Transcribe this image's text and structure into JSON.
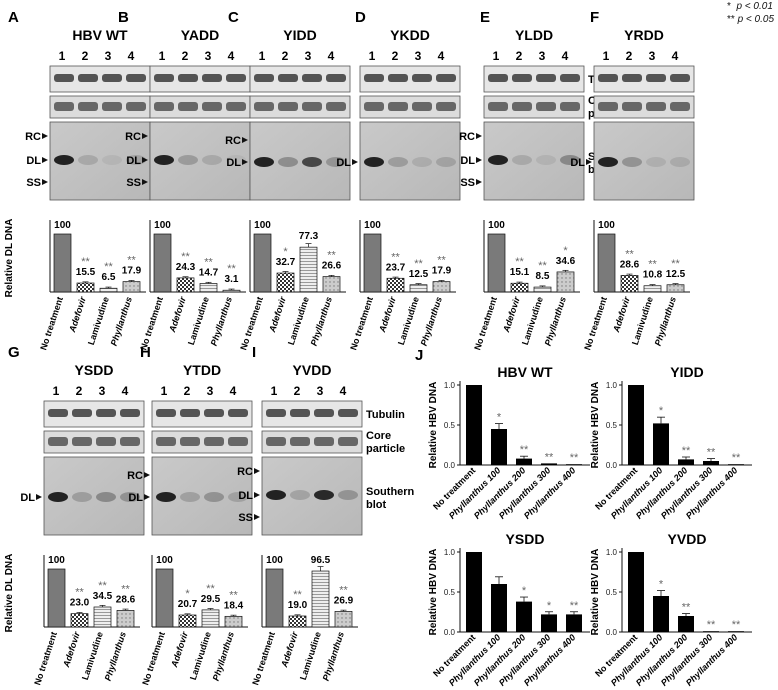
{
  "legend": [
    {
      "stars": "*",
      "text": "p < 0.01"
    },
    {
      "stars": "**",
      "text": "p < 0.05"
    }
  ],
  "blot_labels": {
    "tubulin": "Tubulin",
    "core_1": "Core",
    "core_2": "particle",
    "southern_1": "Southern",
    "southern_2": "blot"
  },
  "ylabel_dl": "Relative DL DNA",
  "ylabel_hbv": "Relative HBV DNA",
  "lanes": [
    "1",
    "2",
    "3",
    "4"
  ],
  "categories": [
    "No treatment",
    "Adefovir",
    "Lamivudine",
    "Phyllanthus"
  ],
  "chart_data": [
    {
      "type": "bar",
      "panel": "A",
      "title": "HBV WT",
      "categories": [
        "No treatment",
        "Adefovir",
        "Lamivudine",
        "Phyllanthus"
      ],
      "values": [
        100,
        15.5,
        6.5,
        17.9
      ],
      "value_labels": [
        "100",
        "15.5",
        "6.5",
        "17.9"
      ],
      "sig": [
        "",
        "**",
        "**",
        "**"
      ],
      "ylabel": "Relative DL DNA",
      "band_markers": [
        "RC",
        "DL",
        "SS"
      ],
      "side": {
        "tubulin": true,
        "southern": false
      }
    },
    {
      "type": "bar",
      "panel": "B",
      "title": "YADD",
      "categories": [
        "No treatment",
        "Adefovir",
        "Lamivudine",
        "Phyllanthus"
      ],
      "values": [
        100,
        24.3,
        14.7,
        3.1
      ],
      "value_labels": [
        "100",
        "24.3",
        "14.7",
        "3.1"
      ],
      "sig": [
        "",
        "**",
        "**",
        "**"
      ],
      "band_markers": [
        "RC",
        "DL",
        "SS"
      ]
    },
    {
      "type": "bar",
      "panel": "C",
      "title": "YIDD",
      "categories": [
        "No treatment",
        "Adefovir",
        "Lamivudine",
        "Phyllanthus"
      ],
      "values": [
        100,
        32.7,
        77.3,
        26.6
      ],
      "value_labels": [
        "100",
        "32.7",
        "77.3",
        "26.6"
      ],
      "sig": [
        "",
        "*",
        "",
        "**"
      ],
      "band_markers": [
        "RC",
        "DL"
      ]
    },
    {
      "type": "bar",
      "panel": "D",
      "title": "YKDD",
      "categories": [
        "No treatment",
        "Adefovir",
        "Lamivudine",
        "Phyllanthus"
      ],
      "values": [
        100,
        23.7,
        12.5,
        17.9
      ],
      "value_labels": [
        "100",
        "23.7",
        "12.5",
        "17.9"
      ],
      "sig": [
        "",
        "**",
        "**",
        "**"
      ],
      "band_markers": [
        "DL"
      ]
    },
    {
      "type": "bar",
      "panel": "E",
      "title": "YLDD",
      "categories": [
        "No treatment",
        "Adefovir",
        "Lamivudine",
        "Phyllanthus"
      ],
      "values": [
        100,
        15.1,
        8.5,
        34.6
      ],
      "value_labels": [
        "100",
        "15.1",
        "8.5",
        "34.6"
      ],
      "sig": [
        "",
        "**",
        "**",
        "*"
      ],
      "band_markers": [
        "RC",
        "DL",
        "SS"
      ]
    },
    {
      "type": "bar",
      "panel": "F",
      "title": "YRDD",
      "categories": [
        "No treatment",
        "Adefovir",
        "Lamivudine",
        "Phyllanthus"
      ],
      "values": [
        100,
        28.6,
        10.8,
        12.5
      ],
      "value_labels": [
        "100",
        "28.6",
        "10.8",
        "12.5"
      ],
      "sig": [
        "",
        "**",
        "**",
        "**"
      ],
      "band_markers": [
        "DL"
      ]
    },
    {
      "type": "bar",
      "panel": "G",
      "title": "YSDD",
      "categories": [
        "No treatment",
        "Adefovir",
        "Lamivudine",
        "Phyllanthus"
      ],
      "values": [
        100,
        23.0,
        34.5,
        28.6
      ],
      "value_labels": [
        "100",
        "23.0",
        "34.5",
        "28.6"
      ],
      "sig": [
        "",
        "**",
        "**",
        "**"
      ],
      "ylabel": "Relative DL DNA",
      "band_markers": [
        "DL"
      ]
    },
    {
      "type": "bar",
      "panel": "H",
      "title": "YTDD",
      "categories": [
        "No treatment",
        "Adefovir",
        "Lamivudine",
        "Phyllanthus"
      ],
      "values": [
        100,
        20.7,
        29.5,
        18.4
      ],
      "value_labels": [
        "100",
        "20.7",
        "29.5",
        "18.4"
      ],
      "sig": [
        "",
        "*",
        "**",
        "**"
      ],
      "band_markers": [
        "RC",
        "DL"
      ]
    },
    {
      "type": "bar",
      "panel": "I",
      "title": "YVDD",
      "categories": [
        "No treatment",
        "Adefovir",
        "Lamivudine",
        "Phyllanthus"
      ],
      "values": [
        100,
        19.0,
        96.5,
        26.9
      ],
      "value_labels": [
        "100",
        "19.0",
        "96.5",
        "26.9"
      ],
      "sig": [
        "",
        "**",
        "",
        "**"
      ],
      "band_markers": [
        "RC",
        "DL",
        "SS"
      ]
    },
    {
      "type": "bar",
      "panel": "J",
      "title": "HBV WT",
      "categories": [
        "No treatment",
        "Phyllanthus 100",
        "Phyllanthus 200",
        "Phyllanthus 300",
        "Phyllanthus 400"
      ],
      "values": [
        1.0,
        0.45,
        0.08,
        0.02,
        0.01
      ],
      "sig": [
        "",
        "*",
        "**",
        "**",
        "**"
      ],
      "ylabel": "Relative HBV DNA",
      "ylim": [
        0,
        1
      ]
    },
    {
      "type": "bar",
      "panel": "J",
      "title": "YIDD",
      "categories": [
        "No treatment",
        "Phyllanthus 100",
        "Phyllanthus 200",
        "Phyllanthus 300",
        "Phyllanthus 400"
      ],
      "values": [
        1.0,
        0.52,
        0.07,
        0.05,
        0.01
      ],
      "sig": [
        "",
        "*",
        "**",
        "**",
        "**"
      ],
      "ylabel": "Relative HBV DNA",
      "ylim": [
        0,
        1
      ]
    },
    {
      "type": "bar",
      "panel": "J",
      "title": "YSDD",
      "categories": [
        "No treatment",
        "Phyllanthus 100",
        "Phyllanthus 200",
        "Phyllanthus 300",
        "Phyllanthus 400"
      ],
      "values": [
        1.0,
        0.6,
        0.38,
        0.22,
        0.22
      ],
      "sig": [
        "",
        "",
        "*",
        "*",
        "**"
      ],
      "ylabel": "Relative HBV DNA",
      "ylim": [
        0,
        1
      ]
    },
    {
      "type": "bar",
      "panel": "J",
      "title": "YVDD",
      "categories": [
        "No treatment",
        "Phyllanthus 100",
        "Phyllanthus 200",
        "Phyllanthus 300",
        "Phyllanthus 400"
      ],
      "values": [
        1.0,
        0.45,
        0.2,
        0.01,
        0.01
      ],
      "sig": [
        "",
        "*",
        "**",
        "**",
        "**"
      ],
      "ylabel": "Relative HBV DNA",
      "ylim": [
        0,
        1
      ]
    }
  ],
  "j_ticks": [
    "0.0",
    "0.5",
    "1.0"
  ],
  "colors": {
    "no_treatment": "#777777",
    "adefovir": "#cfcfcf",
    "lamivudine": "#d9d9d9",
    "phyllanthus": "#b8b8b8",
    "j_bar": "#000000"
  }
}
